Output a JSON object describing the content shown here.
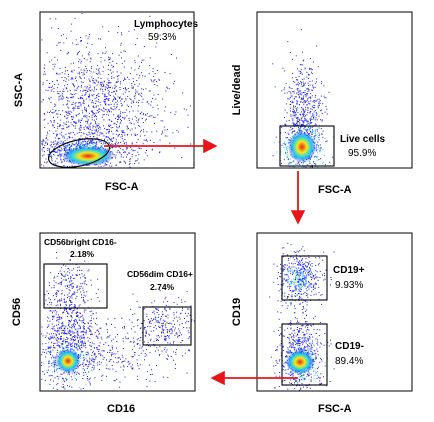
{
  "chart_data": [
    {
      "type": "scatter",
      "xlabel": "FSC-A",
      "ylabel": "SSC-A",
      "gates": [
        {
          "name": "Lymphocytes",
          "percent": "59.3%",
          "shape": "ellipse"
        }
      ]
    },
    {
      "type": "scatter",
      "xlabel": "FSC-A",
      "ylabel": "Live/dead",
      "gates": [
        {
          "name": "Live cells",
          "percent": "95.9%",
          "shape": "rectangle"
        }
      ]
    },
    {
      "type": "scatter",
      "xlabel": "CD16",
      "ylabel": "CD56",
      "gates": [
        {
          "name": "CD56bright CD16-",
          "percent": "2.18%",
          "shape": "rectangle"
        },
        {
          "name": "CD56dim CD16+",
          "percent": "2.74%",
          "shape": "rectangle"
        }
      ]
    },
    {
      "type": "scatter",
      "xlabel": "FSC-A",
      "ylabel": "CD19",
      "gates": [
        {
          "name": "CD19+",
          "percent": "9.93%",
          "shape": "rectangle"
        },
        {
          "name": "CD19-",
          "percent": "89.4%",
          "shape": "rectangle"
        }
      ]
    }
  ],
  "colors": {
    "arrow": "#e8141a",
    "density_low": "#1a1ae6",
    "density_mid": "#19d3f0",
    "density_high": "#f5e61e",
    "density_peak": "#e6261a"
  }
}
